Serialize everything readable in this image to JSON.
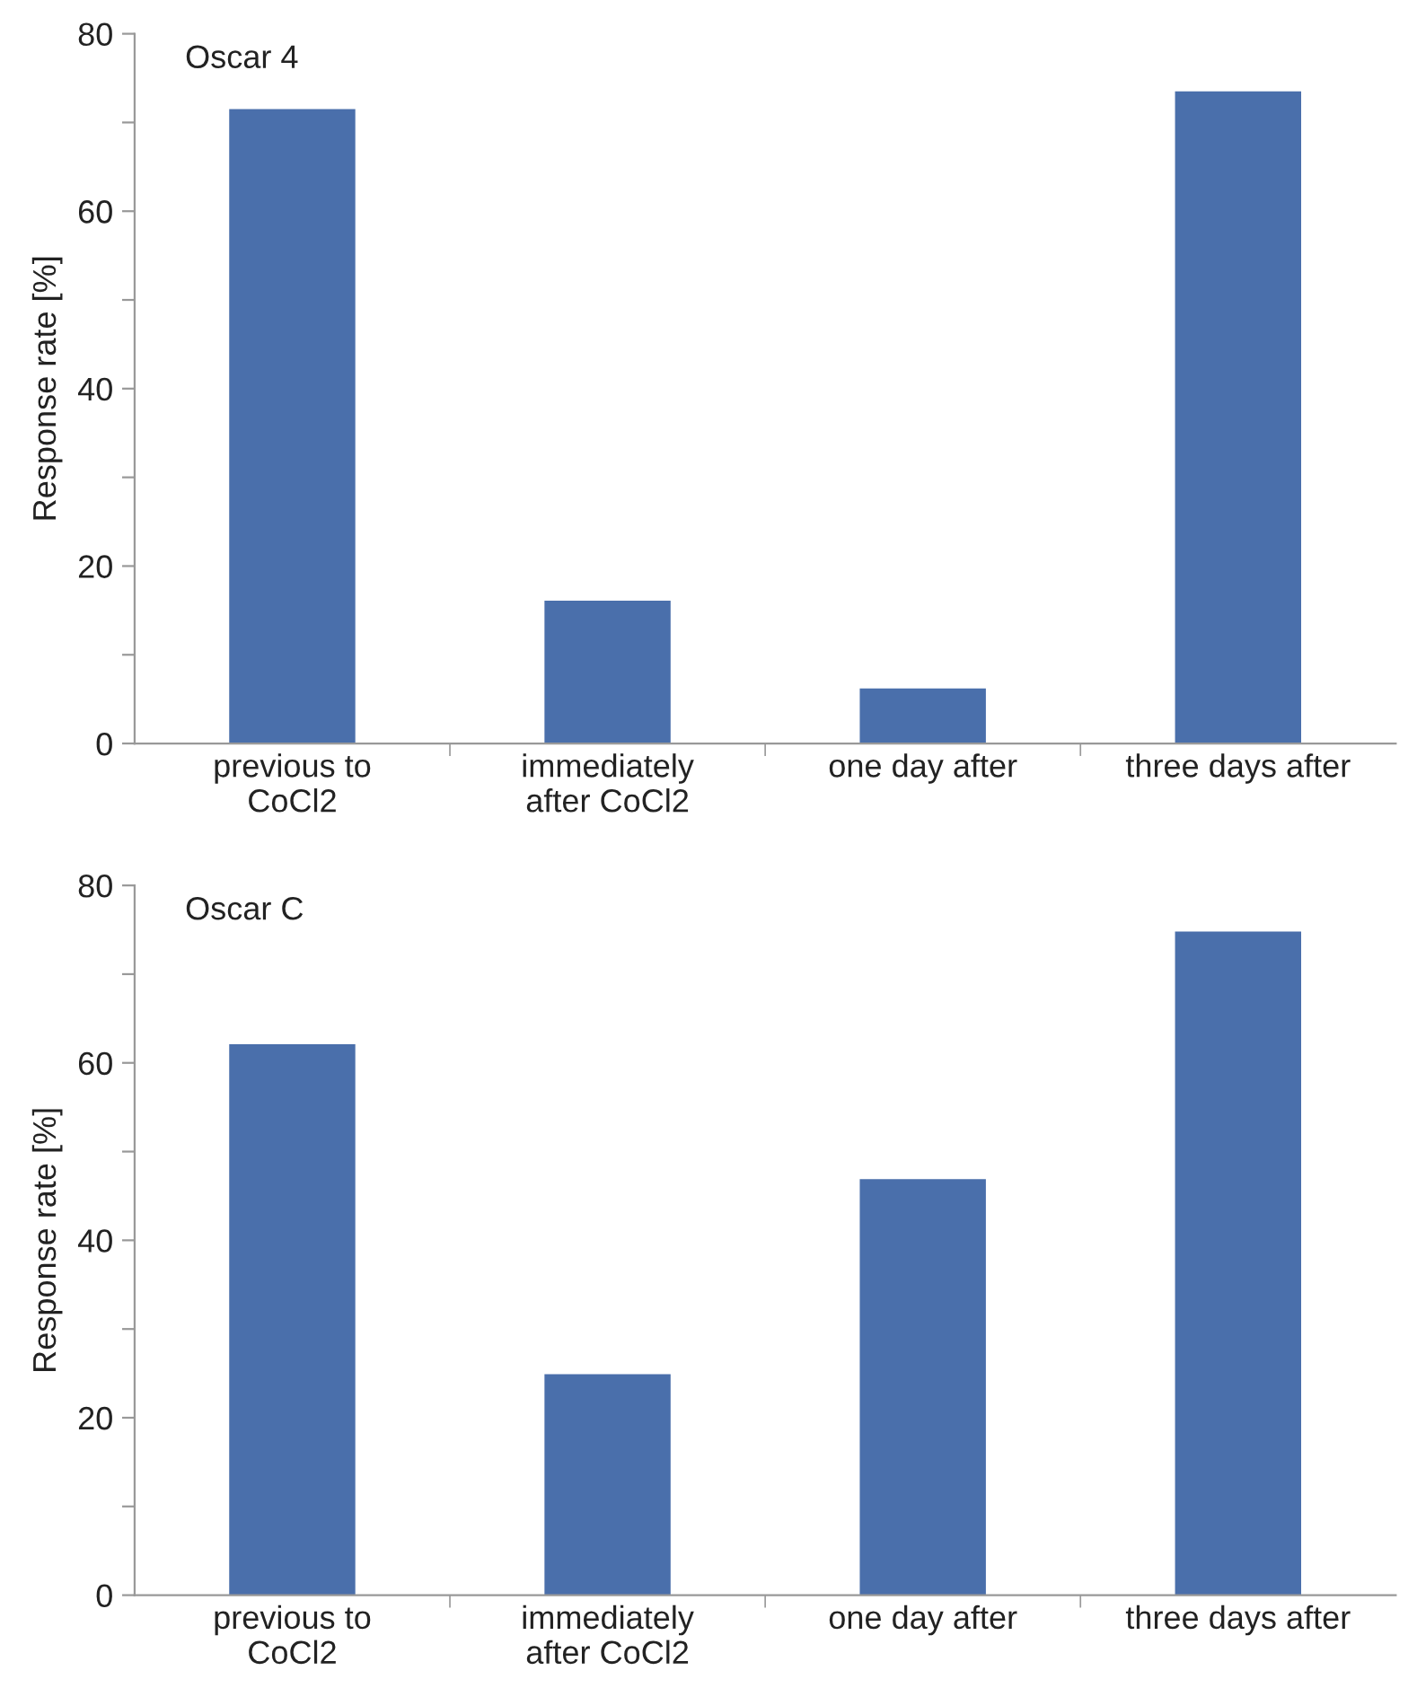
{
  "chart_data": [
    {
      "type": "bar",
      "title": "Oscar 4",
      "ylabel": "Response rate [%]",
      "categories": [
        "previous to\nCoCl2",
        "immediately\nafter CoCl2",
        "one day after",
        "three days after"
      ],
      "values": [
        71.5,
        16.1,
        6.2,
        73.5
      ],
      "color": "#4a6fab",
      "ylim": [
        0,
        80
      ],
      "yticks": [
        0,
        {
          "value": 10,
          "label": null
        },
        20,
        {
          "value": 30,
          "label": null
        },
        40,
        {
          "value": 50,
          "label": null
        },
        60,
        {
          "value": 70,
          "label": null
        },
        80
      ],
      "grid": false
    },
    {
      "type": "bar",
      "title": "Oscar C",
      "ylabel": "Response rate [%]",
      "categories": [
        "previous to\nCoCl2",
        "immediately\nafter CoCl2",
        "one day after",
        "three days after"
      ],
      "values": [
        62.1,
        24.9,
        46.9,
        74.8
      ],
      "color": "#4a6fab",
      "ylim": [
        0,
        80
      ],
      "yticks": [
        0,
        {
          "value": 10,
          "label": null
        },
        20,
        {
          "value": 30,
          "label": null
        },
        40,
        {
          "value": 50,
          "label": null
        },
        60,
        {
          "value": 70,
          "label": null
        },
        80
      ],
      "grid": false
    }
  ]
}
